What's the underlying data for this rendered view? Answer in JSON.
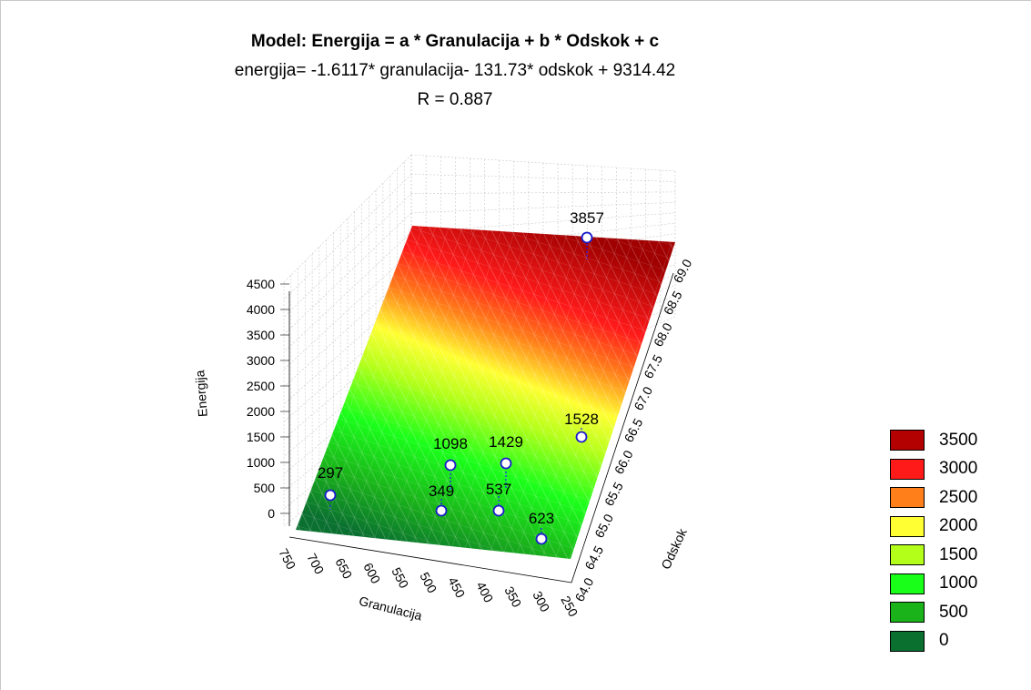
{
  "chart_data": {
    "type": "surface3d",
    "title": "Model:  Energija  = a * Granulacija   + b * Odskok + c",
    "equation": "energija= -1.6117* granulacija- 131.73* odskok + 9314.42",
    "r_value": "R = 0.887",
    "zlabel": "Energija",
    "xlabel": "Granulacija",
    "ylabel": "Odskok",
    "z_ticks": [
      "4500",
      "4000",
      "3500",
      "3000",
      "2500",
      "2000",
      "1500",
      "1000",
      "500",
      "0"
    ],
    "x_ticks": [
      "750",
      "700",
      "650",
      "600",
      "550",
      "500",
      "450",
      "400",
      "350",
      "300",
      "250"
    ],
    "y_ticks": [
      "64.0",
      "64.5",
      "65.0",
      "65.5",
      "66.0",
      "66.5",
      "67.0",
      "67.5",
      "68.0",
      "68.5",
      "69.0"
    ],
    "points": [
      {
        "label": "297"
      },
      {
        "label": "349"
      },
      {
        "label": "1098"
      },
      {
        "label": "1429"
      },
      {
        "label": "537"
      },
      {
        "label": "623"
      },
      {
        "label": "1528"
      },
      {
        "label": "3857"
      }
    ],
    "legend": [
      {
        "label": "3500",
        "color": "#b30000"
      },
      {
        "label": "3000",
        "color": "#ff1a1a"
      },
      {
        "label": "2500",
        "color": "#ff7f1a"
      },
      {
        "label": "2000",
        "color": "#ffff33"
      },
      {
        "label": "1500",
        "color": "#b3ff1a"
      },
      {
        "label": "1000",
        "color": "#1aff1a"
      },
      {
        "label": "500",
        "color": "#1ab31a"
      },
      {
        "label": "0",
        "color": "#0a7030"
      }
    ]
  }
}
